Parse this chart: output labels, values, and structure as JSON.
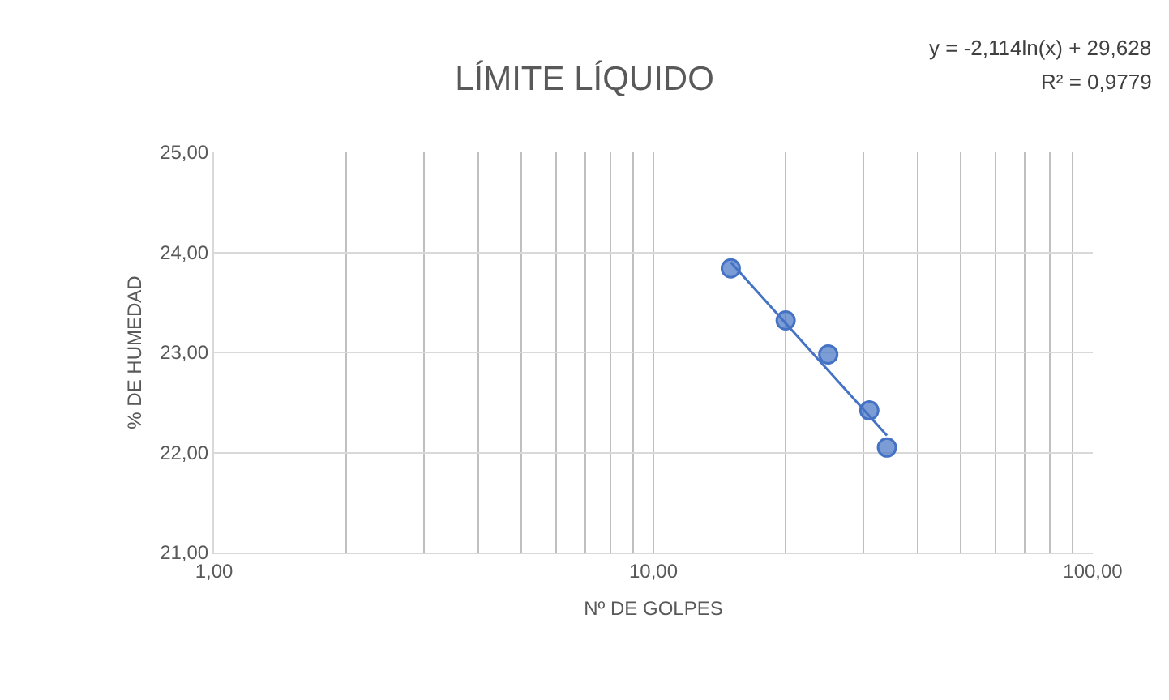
{
  "chart_data": {
    "type": "scatter",
    "title": "LÍMITE LÍQUIDO",
    "xlabel": "Nº DE GOLPES",
    "ylabel": "% DE HUMEDAD",
    "annotations": [
      "y = -2,114ln(x) + 29,628",
      "R² = 0,9779"
    ],
    "log": "x",
    "grid": true,
    "marker": "circle",
    "xlim": [
      1,
      100
    ],
    "xticks": [
      {
        "value": 1,
        "label": "1,00"
      },
      {
        "value": 2,
        "label": null
      },
      {
        "value": 3,
        "label": null
      },
      {
        "value": 4,
        "label": null
      },
      {
        "value": 5,
        "label": null
      },
      {
        "value": 6,
        "label": null
      },
      {
        "value": 7,
        "label": null
      },
      {
        "value": 8,
        "label": null
      },
      {
        "value": 9,
        "label": null
      },
      {
        "value": 10,
        "label": "10,00"
      },
      {
        "value": 20,
        "label": null
      },
      {
        "value": 30,
        "label": null
      },
      {
        "value": 40,
        "label": null
      },
      {
        "value": 50,
        "label": null
      },
      {
        "value": 60,
        "label": null
      },
      {
        "value": 70,
        "label": null
      },
      {
        "value": 80,
        "label": null
      },
      {
        "value": 90,
        "label": null
      },
      {
        "value": 100,
        "label": "100,00"
      }
    ],
    "ylim": [
      21,
      25
    ],
    "yticks": [
      {
        "value": 21,
        "label": "21,00"
      },
      {
        "value": 22,
        "label": "22,00"
      },
      {
        "value": 23,
        "label": "23,00"
      },
      {
        "value": 24,
        "label": "24,00"
      },
      {
        "value": 25,
        "label": "25,00"
      }
    ],
    "series": [
      {
        "color": "#4472c4",
        "x": [
          15,
          20,
          25,
          31,
          34
        ],
        "values": [
          23.84,
          23.32,
          22.98,
          22.42,
          22.05
        ]
      },
      {
        "type": "line",
        "color": "#4472c4",
        "marker": "none",
        "line_style": "solid",
        "x": [
          15,
          34
        ],
        "values": [
          23.9,
          22.17
        ]
      }
    ]
  }
}
